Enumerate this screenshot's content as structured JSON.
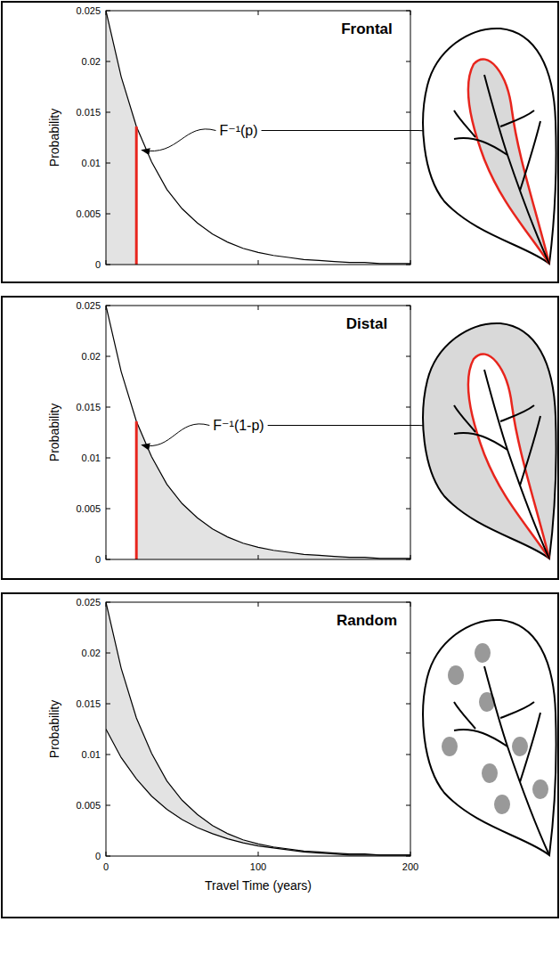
{
  "chart_data": [
    {
      "type": "area",
      "title": "Frontal",
      "y_label": "Probability",
      "annotation": "F⁻¹(p)",
      "x": [
        0,
        10,
        20,
        30,
        40,
        50,
        60,
        70,
        80,
        90,
        100,
        110,
        120,
        130,
        140,
        150,
        160,
        170,
        180,
        190,
        200
      ],
      "series": [
        {
          "color": "#000000",
          "values": [
            0.025,
            0.0185,
            0.0136,
            0.0101,
            0.0074,
            0.0055,
            0.0041,
            0.003,
            0.0022,
            0.0016,
            0.0012,
            0.0009,
            0.0007,
            0.0005,
            0.0004,
            0.0003,
            0.0002,
            0.0002,
            0.0001,
            0.0001,
            0.0001
          ]
        }
      ],
      "shaded": [
        0,
        20
      ],
      "color": "#e3e3e3",
      "threshold": {
        "x": 20,
        "y": 0.0136,
        "color": "#e8251d"
      },
      "xlim": [
        0,
        200
      ],
      "ylim": [
        0,
        0.025
      ],
      "xticks": [
        0,
        100,
        200
      ],
      "yticks": [
        0,
        0.005,
        0.01,
        0.015,
        0.02,
        0.025
      ],
      "tick_labels": "y"
    },
    {
      "type": "area",
      "title": "Distal",
      "y_label": "Probability",
      "annotation": "F⁻¹(1-p)",
      "x": [
        0,
        10,
        20,
        30,
        40,
        50,
        60,
        70,
        80,
        90,
        100,
        110,
        120,
        130,
        140,
        150,
        160,
        170,
        180,
        190,
        200
      ],
      "series": [
        {
          "color": "#000000",
          "values": [
            0.025,
            0.0185,
            0.0136,
            0.0101,
            0.0074,
            0.0055,
            0.0041,
            0.003,
            0.0022,
            0.0016,
            0.0012,
            0.0009,
            0.0007,
            0.0005,
            0.0004,
            0.0003,
            0.0002,
            0.0002,
            0.0001,
            0.0001,
            0.0001
          ]
        }
      ],
      "shaded": [
        20,
        200
      ],
      "color": "#e3e3e3",
      "threshold": {
        "x": 20,
        "y": 0.0136,
        "color": "#e8251d"
      },
      "xlim": [
        0,
        200
      ],
      "ylim": [
        0,
        0.025
      ],
      "xticks": [
        0,
        100,
        200
      ],
      "yticks": [
        0,
        0.005,
        0.01,
        0.015,
        0.02,
        0.025
      ],
      "tick_labels": "y"
    },
    {
      "type": "band",
      "title": "Random",
      "y_label": "Probability",
      "x_label": "Travel Time (years)",
      "x": [
        0,
        10,
        20,
        30,
        40,
        50,
        60,
        70,
        80,
        90,
        100,
        110,
        120,
        130,
        140,
        150,
        160,
        170,
        180,
        190,
        200
      ],
      "series": [
        {
          "color": "#000000",
          "values": [
            0.025,
            0.0185,
            0.0136,
            0.0101,
            0.0074,
            0.0055,
            0.0041,
            0.003,
            0.0022,
            0.0016,
            0.0012,
            0.0009,
            0.0007,
            0.0005,
            0.0004,
            0.0003,
            0.0002,
            0.0002,
            0.0001,
            0.0001,
            0.0001
          ]
        },
        {
          "color": "#000000",
          "values": [
            0.0125,
            0.0097,
            0.0076,
            0.0059,
            0.0046,
            0.0036,
            0.0028,
            0.0022,
            0.0017,
            0.0013,
            0.001,
            0.0008,
            0.0006,
            0.0004,
            0.0003,
            0.0002,
            0.0001,
            0.0001,
            0.0001,
            0.0001,
            0.0001
          ]
        }
      ],
      "color": "#e3e3e3",
      "xlim": [
        0,
        200
      ],
      "ylim": [
        0,
        0.025
      ],
      "xticks": [
        0,
        100,
        200
      ],
      "yticks": [
        0,
        0.005,
        0.01,
        0.015,
        0.02,
        0.025
      ]
    }
  ]
}
